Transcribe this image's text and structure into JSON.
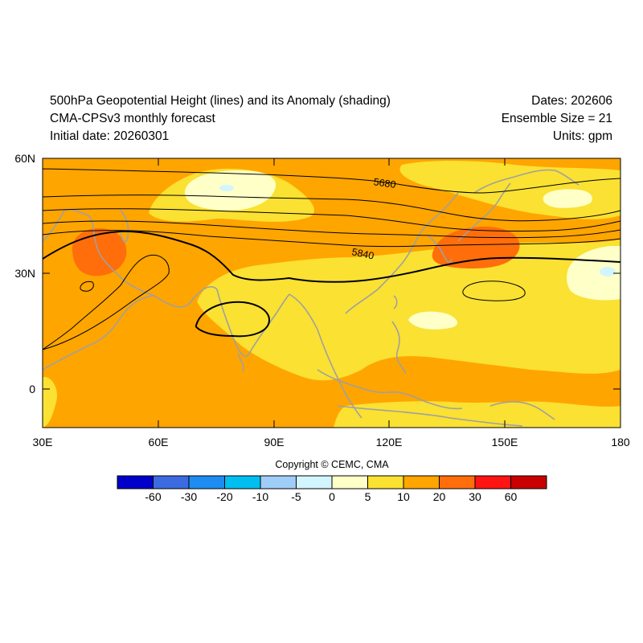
{
  "header": {
    "title": "500hPa Geopotential Height (lines) and its Anomaly (shading)",
    "model": "CMA-CPSv3 monthly forecast",
    "initial_date": "Initial date: 20260301",
    "dates": "Dates: 202606",
    "ensemble": "Ensemble Size = 21",
    "units": "Units: gpm"
  },
  "axes": {
    "y_ticks": [
      "60N",
      "30N",
      "0"
    ],
    "x_ticks": [
      "30E",
      "60E",
      "90E",
      "120E",
      "150E",
      "180"
    ]
  },
  "contour_labels": [
    "5680",
    "5840"
  ],
  "copyright": "Copyright © CEMC, CMA",
  "colorbar": {
    "colors": [
      "#0000c8",
      "#3c6ae0",
      "#1e8cf0",
      "#00bef0",
      "#a0cdf8",
      "#d2f5ff",
      "#ffffc8",
      "#fae132",
      "#ffa500",
      "#ff6e0a",
      "#ff1414",
      "#c80000"
    ],
    "labels": [
      "-60",
      "-30",
      "-20",
      "-10",
      "-5",
      "0",
      "5",
      "10",
      "20",
      "30",
      "60"
    ]
  },
  "shading_colors": {
    "light_blue": "#d2f5ff",
    "pale_yellow": "#ffffc8",
    "yellow": "#fae132",
    "orange": "#ffa500",
    "dark_orange": "#ff6e0a",
    "coastline": "#a0a0a0"
  }
}
